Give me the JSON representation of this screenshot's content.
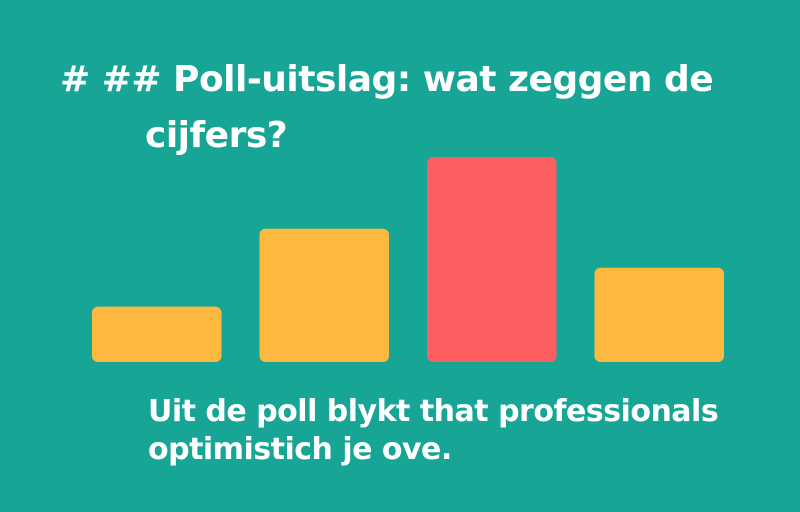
{
  "chart_data": {
    "type": "bar",
    "title": "# ## Poll-uitslag: wat zeggen de cijfers?",
    "caption": "Uit de poll blykt that professionals optimistich je ove.",
    "categories": [
      null,
      null,
      null,
      null
    ],
    "values": [
      27,
      65,
      100,
      46
    ],
    "colors": [
      "#fdb93f",
      "#fdb93f",
      "#fc5f62",
      "#fdb93f"
    ]
  }
}
